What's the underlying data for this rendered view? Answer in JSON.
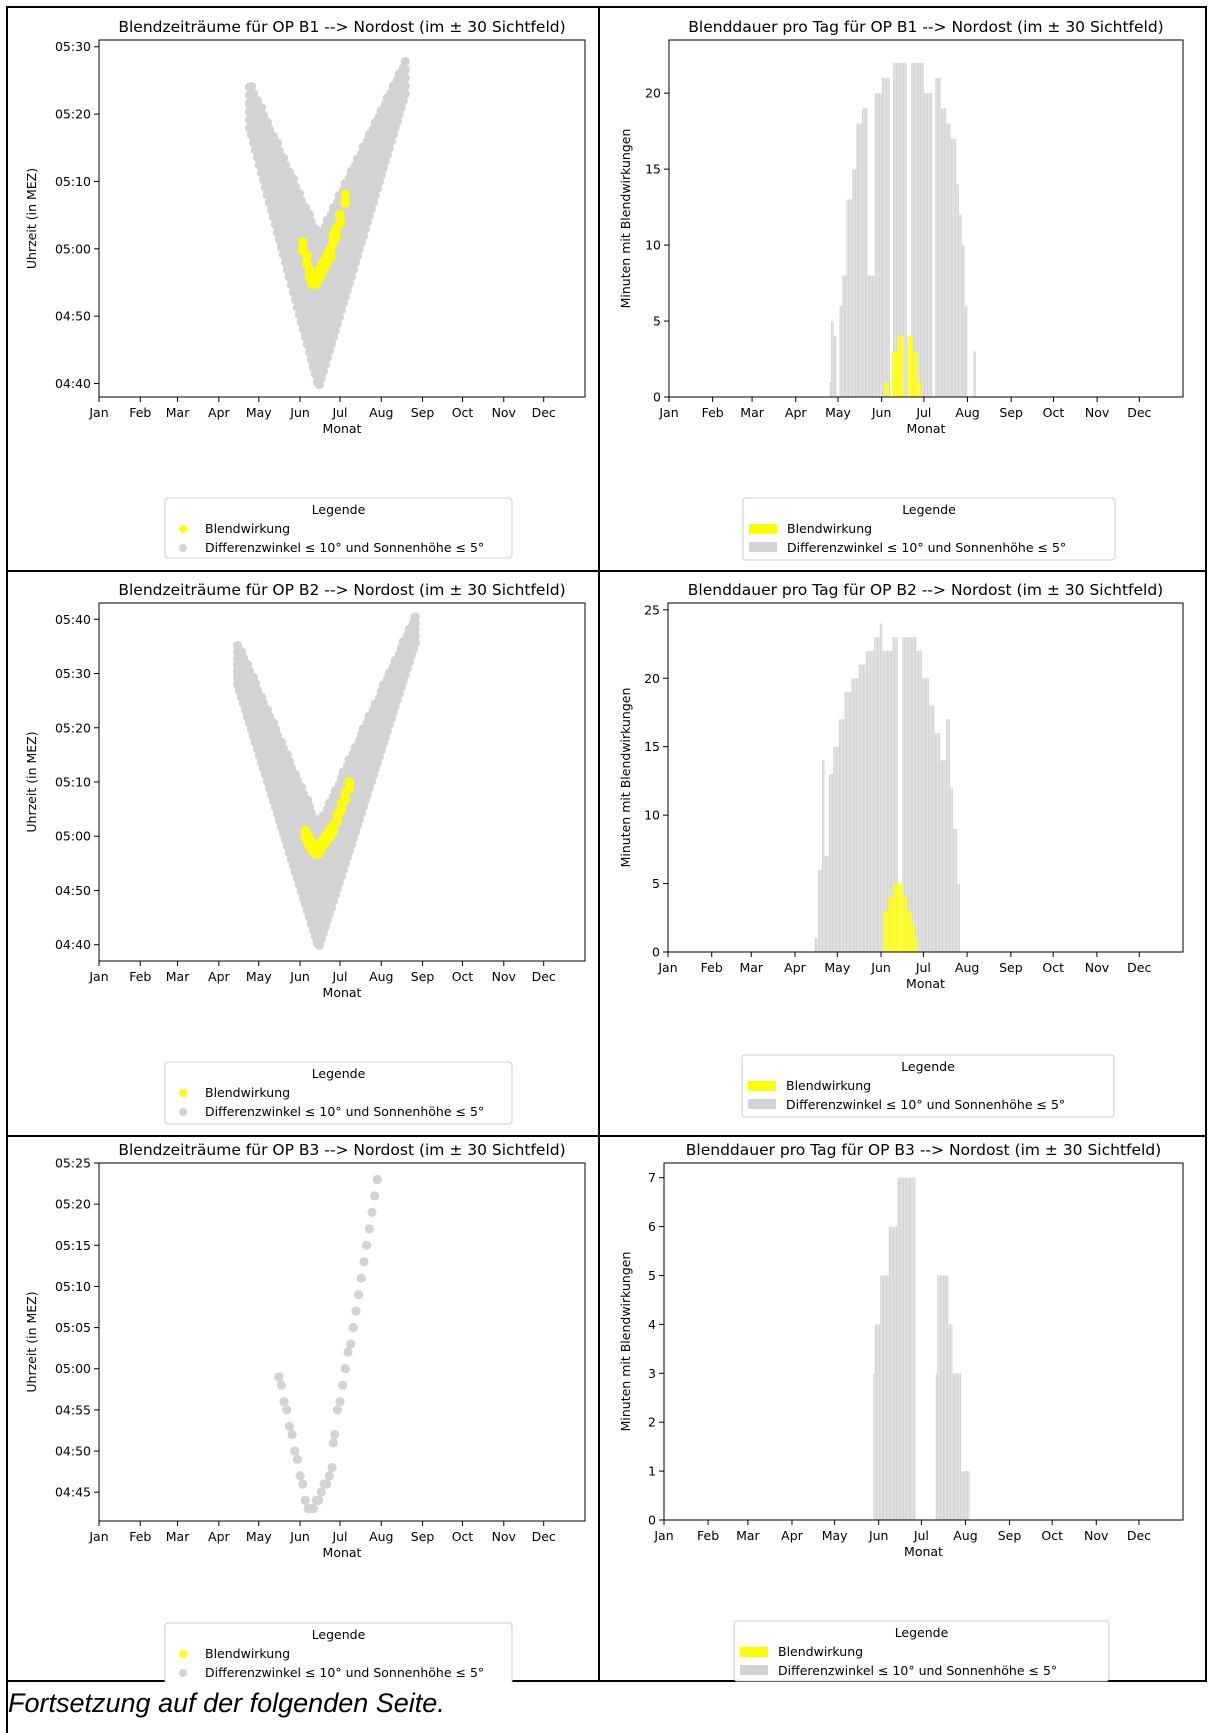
{
  "page": {
    "footer_note": "Fortsetzung auf der folgenden Seite."
  },
  "colors": {
    "glare": "#ffff00",
    "condition": "#d3d3d3"
  },
  "months": [
    "Jan",
    "Feb",
    "Mar",
    "Apr",
    "May",
    "Jun",
    "Jul",
    "Aug",
    "Sep",
    "Oct",
    "Nov",
    "Dec"
  ],
  "legend": {
    "title": "Legende",
    "glare_label": "Blendwirkung",
    "condition_label": "Differenzwinkel ≤  10° und Sonnenhöhe ≤ 5°"
  },
  "charts": [
    {
      "type": "scatter",
      "title": "Blendzeiträume für OP B1 --> Nordost (im ± 30 Sichtfeld)",
      "xlabel": "Monat",
      "ylabel": "Uhrzeit (in MEZ)",
      "xlim": [
        0,
        365
      ],
      "ylim": [
        278,
        331
      ],
      "yticks": [
        {
          "v": 280,
          "label": "04:40"
        },
        {
          "v": 290,
          "label": "04:50"
        },
        {
          "v": 300,
          "label": "05:00"
        },
        {
          "v": 310,
          "label": "05:10"
        },
        {
          "v": 320,
          "label": "05:20"
        },
        {
          "v": 330,
          "label": "05:30"
        }
      ],
      "condition": {
        "start": 113,
        "vertex": 165,
        "end": 230,
        "vertex_low": 279.5,
        "vertex_high": 302,
        "start_low": 318,
        "start_high": 325,
        "end_low": 323,
        "end_high": 328
      },
      "glare": {
        "points": [
          [
            153,
            301
          ],
          [
            156,
            299
          ],
          [
            158,
            297
          ],
          [
            160,
            296
          ],
          [
            163,
            296
          ],
          [
            166,
            297
          ],
          [
            168,
            298
          ],
          [
            171,
            299
          ],
          [
            174,
            300
          ],
          [
            176,
            302
          ],
          [
            178,
            303
          ],
          [
            181,
            305
          ],
          [
            185,
            308
          ]
        ]
      }
    },
    {
      "type": "bar",
      "title": "Blenddauer pro Tag für OP B1 --> Nordost (im ± 30 Sichtfeld)",
      "xlabel": "Monat",
      "ylabel": "Minuten mit Blendwirkungen",
      "xlim": [
        0,
        365
      ],
      "ylim": [
        0,
        23.5
      ],
      "yticks": [
        {
          "v": 0,
          "label": "0"
        },
        {
          "v": 5,
          "label": "5"
        },
        {
          "v": 10,
          "label": "10"
        },
        {
          "v": 15,
          "label": "15"
        },
        {
          "v": 20,
          "label": "20"
        }
      ],
      "condition": [
        [
          113,
          0
        ],
        [
          114,
          1
        ],
        [
          115,
          5
        ],
        [
          117,
          4
        ],
        [
          119,
          0
        ],
        [
          121,
          6
        ],
        [
          123,
          8
        ],
        [
          126,
          13
        ],
        [
          130,
          15
        ],
        [
          133,
          18
        ],
        [
          137,
          19
        ],
        [
          141,
          8
        ],
        [
          146,
          20
        ],
        [
          151,
          21
        ],
        [
          157,
          0
        ],
        [
          159,
          22
        ],
        [
          169,
          0
        ],
        [
          172,
          22
        ],
        [
          181,
          20
        ],
        [
          187,
          0
        ],
        [
          189,
          21
        ],
        [
          193,
          19
        ],
        [
          197,
          18
        ],
        [
          200,
          17
        ],
        [
          204,
          14
        ],
        [
          206,
          12
        ],
        [
          208,
          10
        ],
        [
          210,
          6
        ],
        [
          212,
          0
        ],
        [
          216,
          3
        ],
        [
          218,
          0
        ]
      ],
      "glare": [
        [
          153,
          1
        ],
        [
          156,
          0
        ],
        [
          158,
          3
        ],
        [
          162,
          4
        ],
        [
          167,
          0
        ],
        [
          169,
          4
        ],
        [
          173,
          3
        ],
        [
          177,
          1
        ],
        [
          179,
          0
        ]
      ]
    },
    {
      "type": "scatter",
      "title": "Blendzeiträume für OP B2 --> Nordost (im ± 30 Sichtfeld)",
      "xlabel": "Monat",
      "ylabel": "Uhrzeit (in MEZ)",
      "xlim": [
        0,
        365
      ],
      "ylim": [
        277,
        343
      ],
      "yticks": [
        {
          "v": 280,
          "label": "04:40"
        },
        {
          "v": 290,
          "label": "04:50"
        },
        {
          "v": 300,
          "label": "05:00"
        },
        {
          "v": 310,
          "label": "05:10"
        },
        {
          "v": 320,
          "label": "05:20"
        },
        {
          "v": 330,
          "label": "05:30"
        },
        {
          "v": 340,
          "label": "05:40"
        }
      ],
      "condition": {
        "start": 104,
        "vertex": 165,
        "end": 238,
        "vertex_low": 279.5,
        "vertex_high": 302,
        "start_low": 328,
        "start_high": 336,
        "end_low": 336,
        "end_high": 341
      },
      "glare": {
        "points": [
          [
            155,
            301
          ],
          [
            157,
            300
          ],
          [
            159,
            299
          ],
          [
            162,
            298
          ],
          [
            165,
            298
          ],
          [
            167,
            299
          ],
          [
            170,
            300
          ],
          [
            173,
            301
          ],
          [
            176,
            302
          ],
          [
            179,
            304
          ],
          [
            182,
            306
          ],
          [
            185,
            308
          ],
          [
            188,
            310
          ]
        ]
      }
    },
    {
      "type": "bar",
      "title": "Blenddauer pro Tag für OP B2 --> Nordost (im ± 30 Sichtfeld)",
      "xlabel": "Monat",
      "ylabel": "Minuten mit Blendwirkungen",
      "xlim": [
        0,
        365
      ],
      "ylim": [
        0,
        25.5
      ],
      "yticks": [
        {
          "v": 0,
          "label": "0"
        },
        {
          "v": 5,
          "label": "5"
        },
        {
          "v": 10,
          "label": "10"
        },
        {
          "v": 15,
          "label": "15"
        },
        {
          "v": 20,
          "label": "20"
        },
        {
          "v": 25,
          "label": "25"
        }
      ],
      "condition": [
        [
          104,
          1
        ],
        [
          106,
          6
        ],
        [
          109,
          14
        ],
        [
          111,
          7
        ],
        [
          114,
          13
        ],
        [
          117,
          15
        ],
        [
          121,
          17
        ],
        [
          125,
          19
        ],
        [
          130,
          20
        ],
        [
          135,
          21
        ],
        [
          140,
          22
        ],
        [
          146,
          23
        ],
        [
          150,
          24
        ],
        [
          152,
          22
        ],
        [
          159,
          23
        ],
        [
          163,
          0
        ],
        [
          166,
          23
        ],
        [
          176,
          22
        ],
        [
          180,
          20
        ],
        [
          185,
          18
        ],
        [
          189,
          16
        ],
        [
          193,
          14
        ],
        [
          197,
          17
        ],
        [
          200,
          12
        ],
        [
          202,
          9
        ],
        [
          205,
          5
        ],
        [
          207,
          0
        ]
      ],
      "glare": [
        [
          153,
          3
        ],
        [
          156,
          4
        ],
        [
          160,
          5
        ],
        [
          167,
          4
        ],
        [
          170,
          3
        ],
        [
          173,
          2
        ],
        [
          175,
          1
        ],
        [
          177,
          0
        ]
      ]
    },
    {
      "type": "scatter",
      "title": "Blendzeiträume für OP B3 --> Nordost (im ± 30 Sichtfeld)",
      "xlabel": "Monat",
      "ylabel": "Uhrzeit (in MEZ)",
      "xlim": [
        0,
        365
      ],
      "ylim": [
        281.5,
        325
      ],
      "yticks": [
        {
          "v": 285,
          "label": "04:45"
        },
        {
          "v": 290,
          "label": "04:50"
        },
        {
          "v": 295,
          "label": "04:55"
        },
        {
          "v": 300,
          "label": "05:00"
        },
        {
          "v": 305,
          "label": "05:05"
        },
        {
          "v": 310,
          "label": "05:10"
        },
        {
          "v": 315,
          "label": "05:15"
        },
        {
          "v": 320,
          "label": "05:20"
        },
        {
          "v": 325,
          "label": "05:25"
        }
      ],
      "condition": {
        "points": [
          [
            135,
            299
          ],
          [
            137,
            298
          ],
          [
            139,
            296
          ],
          [
            141,
            295
          ],
          [
            143,
            293
          ],
          [
            145,
            292
          ],
          [
            147,
            290
          ],
          [
            149,
            289
          ],
          [
            151,
            287
          ],
          [
            153,
            286
          ],
          [
            155,
            284
          ],
          [
            157,
            283
          ],
          [
            159,
            283
          ],
          [
            161,
            283
          ],
          [
            163,
            284
          ],
          [
            165,
            284
          ],
          [
            167,
            285
          ],
          [
            169,
            286
          ],
          [
            171,
            286
          ],
          [
            173,
            287
          ],
          [
            175,
            288
          ],
          [
            176,
            291
          ],
          [
            177,
            292
          ],
          [
            179,
            295
          ],
          [
            181,
            296
          ],
          [
            183,
            298
          ],
          [
            185,
            300
          ],
          [
            187,
            302
          ],
          [
            189,
            303
          ],
          [
            191,
            305
          ],
          [
            193,
            307
          ],
          [
            195,
            309
          ],
          [
            197,
            311
          ],
          [
            199,
            313
          ],
          [
            201,
            315
          ],
          [
            203,
            317
          ],
          [
            205,
            319
          ],
          [
            207,
            321
          ],
          [
            209,
            323
          ]
        ]
      },
      "glare": {
        "points": []
      }
    },
    {
      "type": "bar",
      "title": "Blenddauer pro Tag für OP B3 --> Nordost (im ± 30 Sichtfeld)",
      "xlabel": "Monat",
      "ylabel": "Minuten mit Blendwirkungen",
      "xlim": [
        0,
        365
      ],
      "ylim": [
        0,
        7.3
      ],
      "yticks": [
        {
          "v": 0,
          "label": "0"
        },
        {
          "v": 1,
          "label": "1"
        },
        {
          "v": 2,
          "label": "2"
        },
        {
          "v": 3,
          "label": "3"
        },
        {
          "v": 4,
          "label": "4"
        },
        {
          "v": 5,
          "label": "5"
        },
        {
          "v": 6,
          "label": "6"
        },
        {
          "v": 7,
          "label": "7"
        }
      ],
      "condition": [
        [
          147,
          3
        ],
        [
          148,
          4
        ],
        [
          152,
          5
        ],
        [
          158,
          6
        ],
        [
          164,
          7
        ],
        [
          177,
          0
        ],
        [
          191,
          3
        ],
        [
          192,
          5
        ],
        [
          200,
          4
        ],
        [
          203,
          3
        ],
        [
          209,
          1
        ],
        [
          215,
          0
        ]
      ],
      "glare": []
    }
  ]
}
